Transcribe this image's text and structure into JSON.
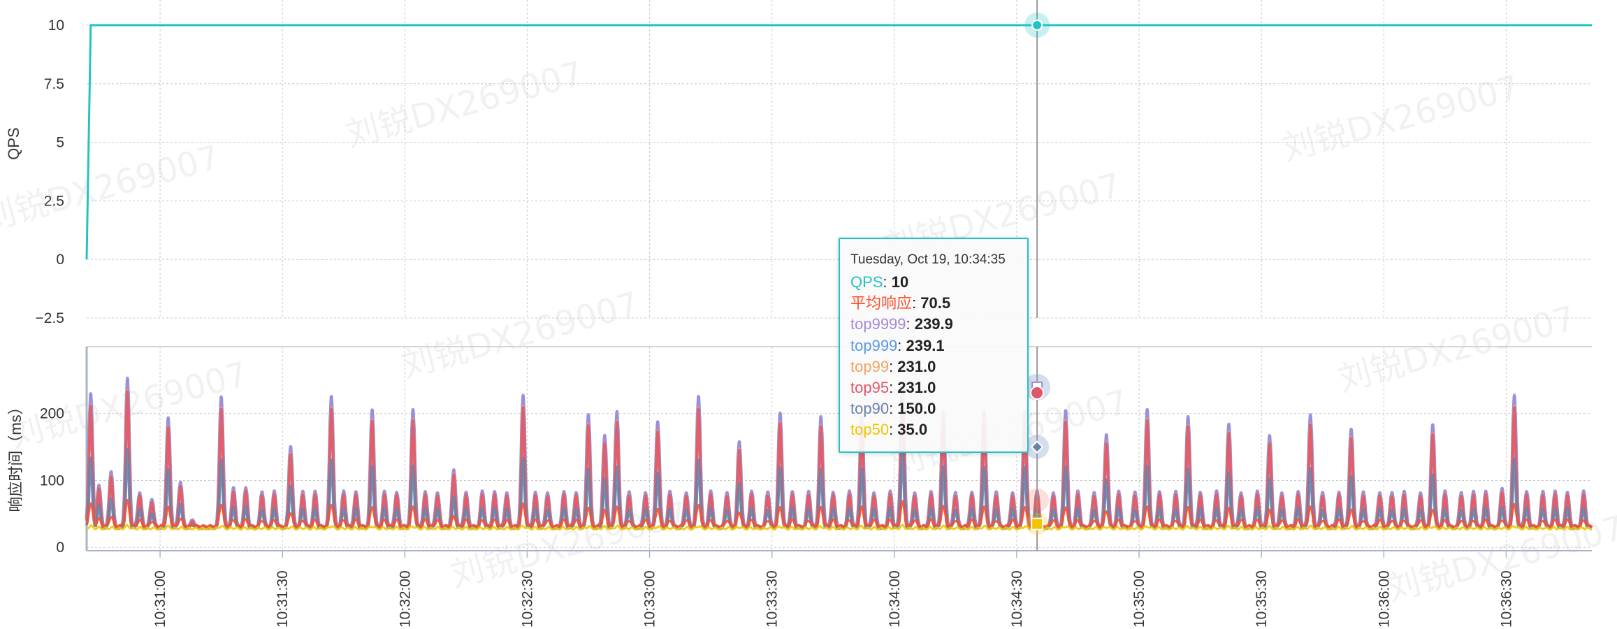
{
  "colors": {
    "qps": "#24c3c3",
    "avg": "#ff4e2e",
    "top9999": "#a78ad6",
    "top999": "#5a9ae3",
    "top99": "#f5a25e",
    "top95": "#e0566a",
    "top90": "#6a82a8",
    "top50": "#f2c500",
    "grid": "#c8c8c8",
    "axis": "#aab4c8"
  },
  "watermark_text": "刘锐DX269007",
  "chart_data": [
    {
      "type": "line",
      "id": "qps-chart",
      "ylabel": "QPS",
      "ylim": [
        -2.5,
        10
      ],
      "y_ticks": [
        "10",
        "7.5",
        "5",
        "2.5",
        "0",
        "−2.5"
      ],
      "y_tick_values": [
        10,
        7.5,
        5,
        2.5,
        0,
        -2.5
      ],
      "grid": true,
      "series": [
        {
          "name": "QPS",
          "x": [
            "10:30:42",
            "10:30:43",
            "10:36:51"
          ],
          "values": [
            0,
            10,
            10
          ]
        }
      ]
    },
    {
      "type": "line",
      "id": "latency-chart",
      "ylabel": "响应时间（ms）",
      "ylim": [
        -5,
        300
      ],
      "y_ticks": [
        "200",
        "100",
        "0"
      ],
      "y_tick_values": [
        200,
        100,
        0
      ],
      "x_ticks": [
        "10:31:00",
        "10:31:30",
        "10:32:00",
        "10:32:30",
        "10:33:00",
        "10:33:30",
        "10:34:00",
        "10:34:30",
        "10:35:00",
        "10:35:30",
        "10:36:00",
        "10:36:30"
      ],
      "x_range": [
        "10:30:42",
        "10:36:51"
      ],
      "grid": true,
      "spike_times": [
        "10:30:43",
        "10:30:45",
        "10:30:48",
        "10:30:52",
        "10:30:55",
        "10:30:58",
        "10:31:02",
        "10:31:05",
        "10:31:08",
        "10:31:11",
        "10:31:15",
        "10:31:18",
        "10:31:21",
        "10:31:25",
        "10:31:28",
        "10:31:32",
        "10:31:35",
        "10:31:38",
        "10:31:42",
        "10:31:45",
        "10:31:48",
        "10:31:52",
        "10:31:55",
        "10:31:58",
        "10:32:02",
        "10:32:05",
        "10:32:08",
        "10:32:12",
        "10:32:15",
        "10:32:19",
        "10:32:22",
        "10:32:25",
        "10:32:29",
        "10:32:32",
        "10:32:35",
        "10:32:39",
        "10:32:42",
        "10:32:45",
        "10:32:49",
        "10:32:52",
        "10:32:55",
        "10:32:59",
        "10:33:02",
        "10:33:05",
        "10:33:09",
        "10:33:12",
        "10:33:15",
        "10:33:19",
        "10:33:22",
        "10:33:25",
        "10:33:29",
        "10:33:32",
        "10:33:35",
        "10:33:39",
        "10:33:42",
        "10:33:45",
        "10:33:49",
        "10:33:52",
        "10:33:55",
        "10:33:59",
        "10:34:02",
        "10:34:05",
        "10:34:09",
        "10:34:12",
        "10:34:15",
        "10:34:19",
        "10:34:22",
        "10:34:25",
        "10:34:29",
        "10:34:32",
        "10:34:35",
        "10:34:39",
        "10:34:42",
        "10:34:45",
        "10:34:49",
        "10:34:52",
        "10:34:55",
        "10:34:59",
        "10:35:02",
        "10:35:05",
        "10:35:09",
        "10:35:12",
        "10:35:15",
        "10:35:19",
        "10:35:22",
        "10:35:25",
        "10:35:29",
        "10:35:32",
        "10:35:35",
        "10:35:39",
        "10:35:42",
        "10:35:45",
        "10:35:49",
        "10:35:52",
        "10:35:55",
        "10:35:59",
        "10:36:02",
        "10:36:05",
        "10:36:09",
        "10:36:12",
        "10:36:15",
        "10:36:19",
        "10:36:22",
        "10:36:25",
        "10:36:29",
        "10:36:32",
        "10:36:35",
        "10:36:39",
        "10:36:42",
        "10:36:45",
        "10:36:49"
      ],
      "spike_values": [
        220,
        90,
        110,
        240,
        80,
        70,
        185,
        95,
        40,
        30,
        215,
        85,
        85,
        80,
        80,
        145,
        80,
        80,
        215,
        80,
        80,
        195,
        80,
        80,
        195,
        80,
        80,
        110,
        80,
        80,
        80,
        80,
        215,
        80,
        80,
        80,
        80,
        190,
        160,
        195,
        80,
        80,
        180,
        80,
        80,
        215,
        80,
        80,
        150,
        80,
        80,
        190,
        80,
        80,
        185,
        80,
        80,
        185,
        80,
        80,
        231,
        80,
        80,
        195,
        80,
        80,
        195,
        80,
        80,
        195,
        80,
        80,
        195,
        80,
        80,
        160,
        80,
        80,
        195,
        80,
        80,
        185,
        80,
        80,
        175,
        80,
        80,
        160,
        80,
        80,
        190,
        80,
        80,
        170,
        80,
        80,
        80,
        80,
        80,
        175,
        80,
        80,
        80,
        80,
        85,
        215,
        80,
        80,
        80,
        80,
        80
      ],
      "series": [
        {
          "name": "top9999",
          "baseline": 30
        },
        {
          "name": "top999",
          "baseline": 30
        },
        {
          "name": "top99",
          "baseline": 30
        },
        {
          "name": "top95",
          "baseline": 30
        },
        {
          "name": "top90",
          "baseline": 30
        },
        {
          "name": "平均响应",
          "baseline": 32
        },
        {
          "name": "top50",
          "baseline": 28
        }
      ]
    }
  ],
  "tooltip": {
    "title": "Tuesday, Oct 19, 10:34:35",
    "x_time": "10:34:35",
    "rows": [
      {
        "key": "qps",
        "name": "QPS",
        "value": "10"
      },
      {
        "key": "avg",
        "name": "平均响应",
        "value": "70.5"
      },
      {
        "key": "top9999",
        "name": "top9999",
        "value": "239.9"
      },
      {
        "key": "top999",
        "name": "top999",
        "value": "239.1"
      },
      {
        "key": "top99",
        "name": "top99",
        "value": "231.0"
      },
      {
        "key": "top95",
        "name": "top95",
        "value": "231.0"
      },
      {
        "key": "top90",
        "name": "top90",
        "value": "150.0"
      },
      {
        "key": "top50",
        "name": "top50",
        "value": "35.0"
      }
    ]
  }
}
